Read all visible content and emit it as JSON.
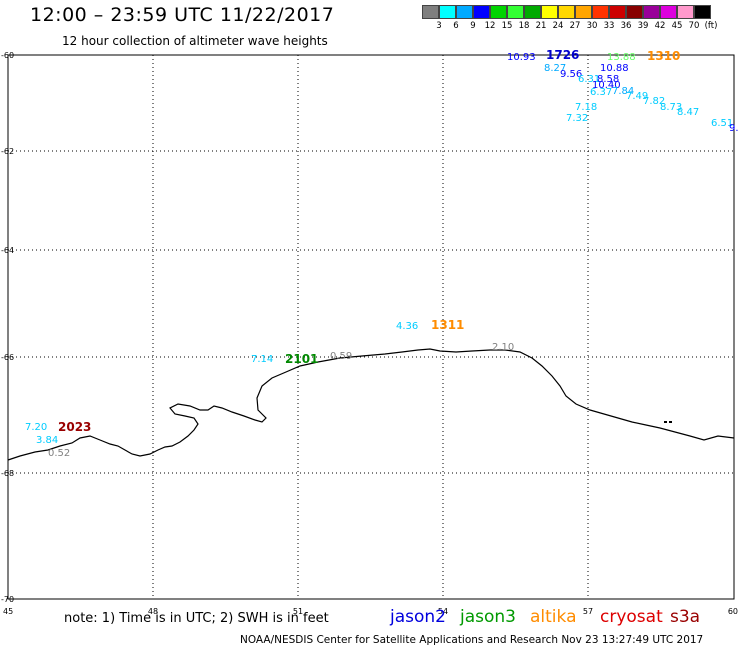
{
  "header": {
    "title": "12:00 – 23:59 UTC 11/22/2017",
    "subtitle": "12 hour collection of altimeter wave heights"
  },
  "legend": {
    "colors": [
      "#7f7f7f",
      "#00ffff",
      "#00aaff",
      "#0000ff",
      "#00d400",
      "#33ff33",
      "#00aa00",
      "#ffff00",
      "#ffd700",
      "#ffa500",
      "#ff3300",
      "#cc0000",
      "#880000",
      "#990099",
      "#dd00dd",
      "#ff99cc",
      "#000000"
    ],
    "labels": [
      "3",
      "6",
      "9",
      "12",
      "15",
      "18",
      "21",
      "24",
      "27",
      "30",
      "33",
      "36",
      "39",
      "42",
      "45",
      "70",
      "(ft)"
    ]
  },
  "axes": {
    "x_ticks": [
      "45",
      "48",
      "51",
      "54",
      "57",
      "60"
    ],
    "y_ticks": [
      "-60",
      "-62",
      "-64",
      "-66",
      "-68",
      "-70"
    ]
  },
  "readings": [
    {
      "text": "10.93",
      "color": "#0000ff"
    },
    {
      "text": "1726",
      "color": "#0000cc",
      "bold": true
    },
    {
      "text": "13.88",
      "color": "#66ff66"
    },
    {
      "text": "1310",
      "color": "#ff8c00",
      "bold": true
    },
    {
      "text": "8.27",
      "color": "#00aaff"
    },
    {
      "text": "10.88",
      "color": "#0000ff"
    },
    {
      "text": "9.56",
      "color": "#0000ff"
    },
    {
      "text": "6.31",
      "color": "#00ccff"
    },
    {
      "text": "8.58",
      "color": "#0000ff"
    },
    {
      "text": "10.40",
      "color": "#0000ff"
    },
    {
      "text": "6.37",
      "color": "#00ccff"
    },
    {
      "text": "7.84",
      "color": "#00aaff"
    },
    {
      "text": "7.49",
      "color": "#00ccff"
    },
    {
      "text": "7.82",
      "color": "#00ccff"
    },
    {
      "text": "8.73",
      "color": "#00ccff"
    },
    {
      "text": "8.47",
      "color": "#00ccff"
    },
    {
      "text": "6.51",
      "color": "#00ccff"
    },
    {
      "text": "9.",
      "color": "#0000ff"
    },
    {
      "text": "7.18",
      "color": "#00ccff"
    },
    {
      "text": "7.32",
      "color": "#00ccff"
    },
    {
      "text": "4.36",
      "color": "#00ccff"
    },
    {
      "text": "1311",
      "color": "#ff8c00",
      "bold": true
    },
    {
      "text": "7.14",
      "color": "#00ccff"
    },
    {
      "text": "2101",
      "color": "#008800",
      "bold": true
    },
    {
      "text": "0.59",
      "color": "#808080"
    },
    {
      "text": "2.10",
      "color": "#808080"
    },
    {
      "text": "7.20",
      "color": "#00ccff"
    },
    {
      "text": "2023",
      "color": "#990000",
      "bold": true
    },
    {
      "text": "3.84",
      "color": "#00ccff"
    },
    {
      "text": "0.52",
      "color": "#808080"
    }
  ],
  "footer": {
    "note": "note:  1) Time is in UTC;  2) SWH is in feet",
    "satellites": [
      {
        "name": "jason2",
        "color": "#0000dd"
      },
      {
        "name": "jason3",
        "color": "#009900"
      },
      {
        "name": "altika",
        "color": "#ff8c00"
      },
      {
        "name": "cryosat",
        "color": "#dd0000"
      },
      {
        "name": "s3a",
        "color": "#990000"
      }
    ],
    "credit": "NOAA/NESDIS Center for Satellite Applications and Research    Nov 23 13:27:49 UTC 2017"
  }
}
